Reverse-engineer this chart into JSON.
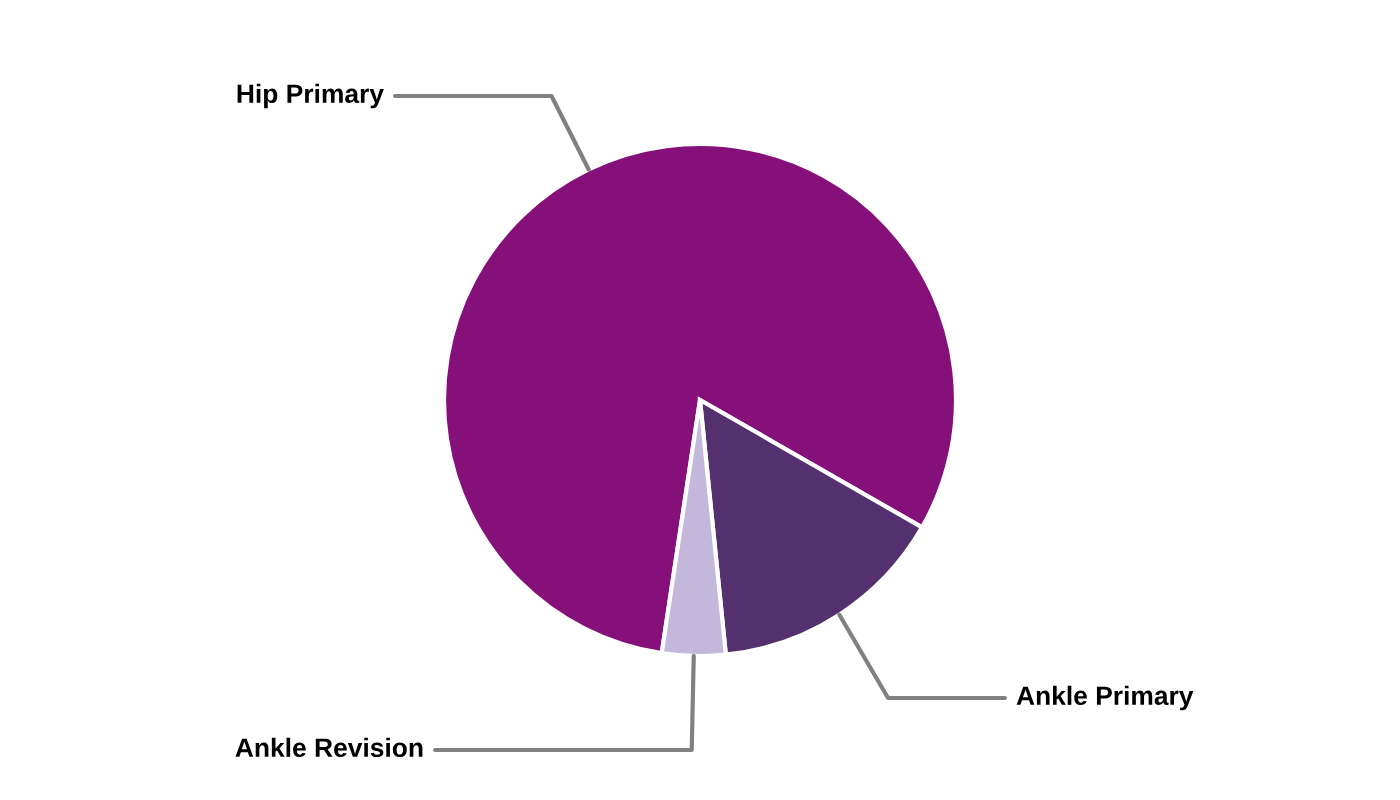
{
  "chart_data": {
    "type": "pie",
    "categories": [
      "Hip Primary",
      "Ankle Primary",
      "Ankle Revision"
    ],
    "values": [
      80.9,
      15.1,
      4.0
    ],
    "colors": [
      "#85107a",
      "#54306e",
      "#c3b8dc"
    ]
  }
}
